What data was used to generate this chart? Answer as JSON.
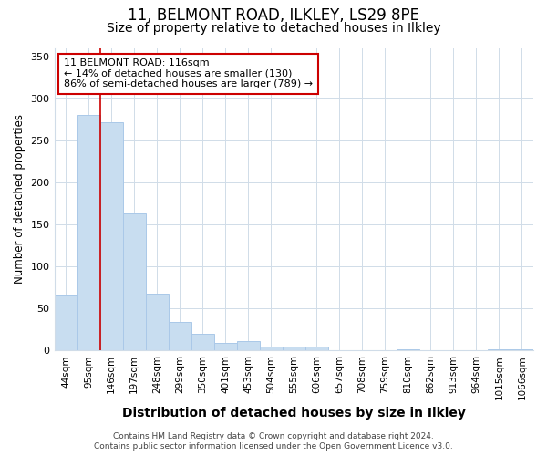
{
  "title1": "11, BELMONT ROAD, ILKLEY, LS29 8PE",
  "title2": "Size of property relative to detached houses in Ilkley",
  "xlabel": "Distribution of detached houses by size in Ilkley",
  "ylabel": "Number of detached properties",
  "categories": [
    "44sqm",
    "95sqm",
    "146sqm",
    "197sqm",
    "248sqm",
    "299sqm",
    "350sqm",
    "401sqm",
    "453sqm",
    "504sqm",
    "555sqm",
    "606sqm",
    "657sqm",
    "708sqm",
    "759sqm",
    "810sqm",
    "862sqm",
    "913sqm",
    "964sqm",
    "1015sqm",
    "1066sqm"
  ],
  "values": [
    65,
    280,
    272,
    163,
    67,
    34,
    20,
    9,
    11,
    5,
    5,
    4,
    0,
    0,
    0,
    1,
    0,
    0,
    0,
    1,
    1
  ],
  "bar_color": "#c8ddf0",
  "bar_edge_color": "#aac8e8",
  "red_line_x": 1.5,
  "annotation_text": "11 BELMONT ROAD: 116sqm\n← 14% of detached houses are smaller (130)\n86% of semi-detached houses are larger (789) →",
  "annotation_box_color": "white",
  "annotation_box_edge": "#cc0000",
  "grid_color": "#d0dce8",
  "plot_bg": "white",
  "fig_bg": "white",
  "ylim": [
    0,
    360
  ],
  "yticks": [
    0,
    50,
    100,
    150,
    200,
    250,
    300,
    350
  ],
  "title1_fontsize": 12,
  "title2_fontsize": 10,
  "ylabel_fontsize": 8.5,
  "xlabel_fontsize": 10,
  "tick_fontsize": 7.5,
  "annot_fontsize": 8,
  "footer_fontsize": 6.5,
  "footer": "Contains HM Land Registry data © Crown copyright and database right 2024.\nContains public sector information licensed under the Open Government Licence v3.0."
}
